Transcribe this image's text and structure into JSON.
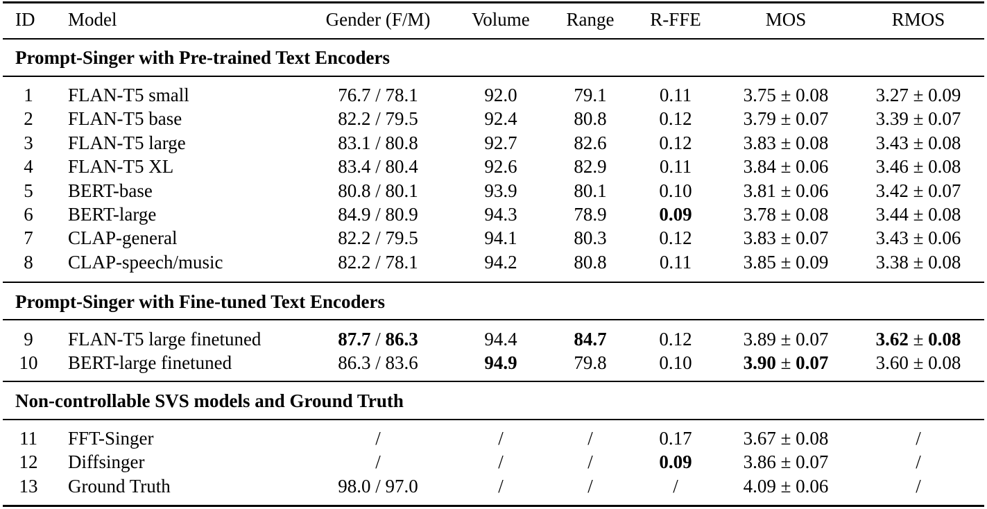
{
  "table": {
    "headers": [
      "ID",
      "Model",
      "Gender (F/M)",
      "Volume",
      "Range",
      "R-FFE",
      "MOS",
      "RMOS"
    ],
    "pm": "±",
    "sections": [
      {
        "title": "Prompt-Singer with Pre-trained Text Encoders",
        "rows": [
          {
            "id": "1",
            "model": "FLAN-T5 small",
            "gender_f": "76.7",
            "gender_m": "78.1",
            "volume": "92.0",
            "range": "79.1",
            "rffe": "0.11",
            "mos": "3.75",
            "mos_err": "0.08",
            "rmos": "3.27",
            "rmos_err": "0.09"
          },
          {
            "id": "2",
            "model": "FLAN-T5 base",
            "gender_f": "82.2",
            "gender_m": "79.5",
            "volume": "92.4",
            "range": "80.8",
            "rffe": "0.12",
            "mos": "3.79",
            "mos_err": "0.07",
            "rmos": "3.39",
            "rmos_err": "0.07"
          },
          {
            "id": "3",
            "model": "FLAN-T5 large",
            "gender_f": "83.1",
            "gender_m": "80.8",
            "volume": "92.7",
            "range": "82.6",
            "rffe": "0.12",
            "mos": "3.83",
            "mos_err": "0.08",
            "rmos": "3.43",
            "rmos_err": "0.08"
          },
          {
            "id": "4",
            "model": "FLAN-T5 XL",
            "gender_f": "83.4",
            "gender_m": "80.4",
            "volume": "92.6",
            "range": "82.9",
            "rffe": "0.11",
            "mos": "3.84",
            "mos_err": "0.06",
            "rmos": "3.46",
            "rmos_err": "0.08"
          },
          {
            "id": "5",
            "model": "BERT-base",
            "gender_f": "80.8",
            "gender_m": "80.1",
            "volume": "93.9",
            "range": "80.1",
            "rffe": "0.10",
            "mos": "3.81",
            "mos_err": "0.06",
            "rmos": "3.42",
            "rmos_err": "0.07"
          },
          {
            "id": "6",
            "model": "BERT-large",
            "gender_f": "84.9",
            "gender_m": "80.9",
            "volume": "94.3",
            "range": "78.9",
            "rffe": "0.09",
            "mos": "3.78",
            "mos_err": "0.08",
            "rmos": "3.44",
            "rmos_err": "0.08",
            "bold": [
              "rffe"
            ]
          },
          {
            "id": "7",
            "model": "CLAP-general",
            "gender_f": "82.2",
            "gender_m": "79.5",
            "volume": "94.1",
            "range": "80.3",
            "rffe": "0.12",
            "mos": "3.83",
            "mos_err": "0.07",
            "rmos": "3.43",
            "rmos_err": "0.06"
          },
          {
            "id": "8",
            "model": "CLAP-speech/music",
            "gender_f": "82.2",
            "gender_m": "78.1",
            "volume": "94.2",
            "range": "80.8",
            "rffe": "0.11",
            "mos": "3.85",
            "mos_err": "0.09",
            "rmos": "3.38",
            "rmos_err": "0.08"
          }
        ]
      },
      {
        "title": "Prompt-Singer with Fine-tuned Text Encoders",
        "rows": [
          {
            "id": "9",
            "model": "FLAN-T5 large finetuned",
            "gender_f": "87.7",
            "gender_m": "86.3",
            "volume": "94.4",
            "range": "84.7",
            "rffe": "0.12",
            "mos": "3.89",
            "mos_err": "0.07",
            "rmos": "3.62",
            "rmos_err": "0.08",
            "bold": [
              "gender",
              "range",
              "rmos"
            ]
          },
          {
            "id": "10",
            "model": "BERT-large finetuned",
            "gender_f": "86.3",
            "gender_m": "83.6",
            "volume": "94.9",
            "range": "79.8",
            "rffe": "0.10",
            "mos": "3.90",
            "mos_err": "0.07",
            "rmos": "3.60",
            "rmos_err": "0.08",
            "bold": [
              "volume",
              "mos"
            ]
          }
        ]
      },
      {
        "title": "Non-controllable SVS models and Ground Truth",
        "rows": [
          {
            "id": "11",
            "model": "FFT-Singer",
            "gender": "/",
            "volume": "/",
            "range": "/",
            "rffe": "0.17",
            "mos": "3.67",
            "mos_err": "0.08",
            "rmos": "/"
          },
          {
            "id": "12",
            "model": "Diffsinger",
            "gender": "/",
            "volume": "/",
            "range": "/",
            "rffe": "0.09",
            "mos": "3.86",
            "mos_err": "0.07",
            "rmos": "/",
            "bold": [
              "rffe"
            ]
          },
          {
            "id": "13",
            "model": "Ground Truth",
            "gender_f": "98.0",
            "gender_m": "97.0",
            "volume": "/",
            "range": "/",
            "rffe": "/",
            "mos": "4.09",
            "mos_err": "0.06",
            "rmos": "/"
          }
        ]
      }
    ]
  }
}
